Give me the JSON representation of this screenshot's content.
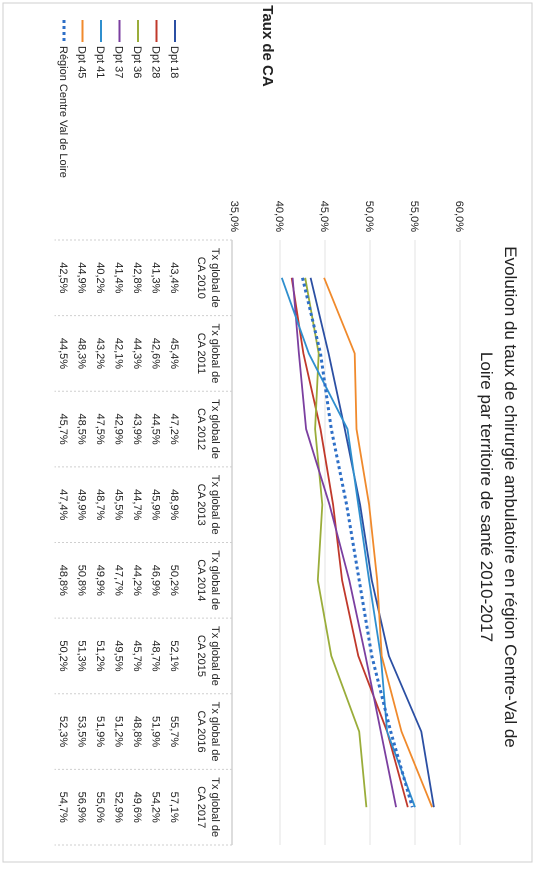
{
  "header": {
    "label": "Taux de CA"
  },
  "chart_data": {
    "type": "line",
    "title": "Evolution du taux de chirurgie ambulatoire en région Centre-Val de Loire par territoire de santé 2010-2017",
    "categories": [
      "Tx global de CA 2010",
      "Tx global de CA 2011",
      "Tx global de CA 2012",
      "Tx global de CA 2013",
      "Tx global de CA 2014",
      "Tx global de CA 2015",
      "Tx global de CA 2016",
      "Tx global de CA 2017"
    ],
    "yticks": [
      "35,0%",
      "40,0%",
      "45,0%",
      "50,0%",
      "55,0%",
      "60,0%"
    ],
    "ylim": [
      35,
      60
    ],
    "grid": true,
    "legend": "left",
    "series": [
      {
        "name": "Dpt 18",
        "color": "#2b4fa3",
        "dashed": false,
        "values": [
          43.4,
          45.4,
          47.2,
          48.9,
          50.2,
          52.1,
          55.7,
          57.1
        ],
        "labels": [
          "43,4%",
          "45,4%",
          "47,2%",
          "48,9%",
          "50,2%",
          "52,1%",
          "55,7%",
          "57,1%"
        ]
      },
      {
        "name": "Dpt 28",
        "color": "#c0392b",
        "dashed": false,
        "values": [
          41.3,
          42.6,
          44.5,
          45.9,
          46.9,
          48.7,
          51.9,
          54.2
        ],
        "labels": [
          "41,3%",
          "42,6%",
          "44,5%",
          "45,9%",
          "46,9%",
          "48,7%",
          "51,9%",
          "54,2%"
        ]
      },
      {
        "name": "Dpt 36",
        "color": "#9aad3a",
        "dashed": false,
        "values": [
          42.8,
          44.3,
          43.9,
          44.7,
          44.2,
          45.7,
          48.8,
          49.6
        ],
        "labels": [
          "42,8%",
          "44,3%",
          "43,9%",
          "44,7%",
          "44,2%",
          "45,7%",
          "48,8%",
          "49,6%"
        ]
      },
      {
        "name": "Dpt 37",
        "color": "#7b3fa0",
        "dashed": false,
        "values": [
          41.4,
          42.1,
          42.9,
          45.5,
          47.7,
          49.5,
          51.2,
          52.9
        ],
        "labels": [
          "41,4%",
          "42,1%",
          "42,9%",
          "45,5%",
          "47,7%",
          "49,5%",
          "51,2%",
          "52,9%"
        ]
      },
      {
        "name": "Dpt 41",
        "color": "#2f8fce",
        "dashed": false,
        "values": [
          40.2,
          43.2,
          47.5,
          48.7,
          49.9,
          51.2,
          51.9,
          55.0
        ],
        "labels": [
          "40,2%",
          "43,2%",
          "47,5%",
          "48,7%",
          "49,9%",
          "51,2%",
          "51,9%",
          "55,0%"
        ]
      },
      {
        "name": "Dpt 45",
        "color": "#f08a2c",
        "dashed": false,
        "values": [
          44.9,
          48.3,
          48.5,
          49.9,
          50.8,
          51.3,
          53.5,
          56.9
        ],
        "labels": [
          "44,9%",
          "48,3%",
          "48,5%",
          "49,9%",
          "50,8%",
          "51,3%",
          "53,5%",
          "56,9%"
        ]
      },
      {
        "name": "Région Centre Val de Loire",
        "color": "#2e6fc7",
        "dashed": true,
        "values": [
          42.5,
          44.5,
          45.7,
          47.4,
          48.8,
          50.2,
          52.3,
          54.7
        ],
        "labels": [
          "42,5%",
          "44,5%",
          "45,7%",
          "47,4%",
          "48,8%",
          "50,2%",
          "52,3%",
          "54,7%"
        ]
      }
    ]
  }
}
